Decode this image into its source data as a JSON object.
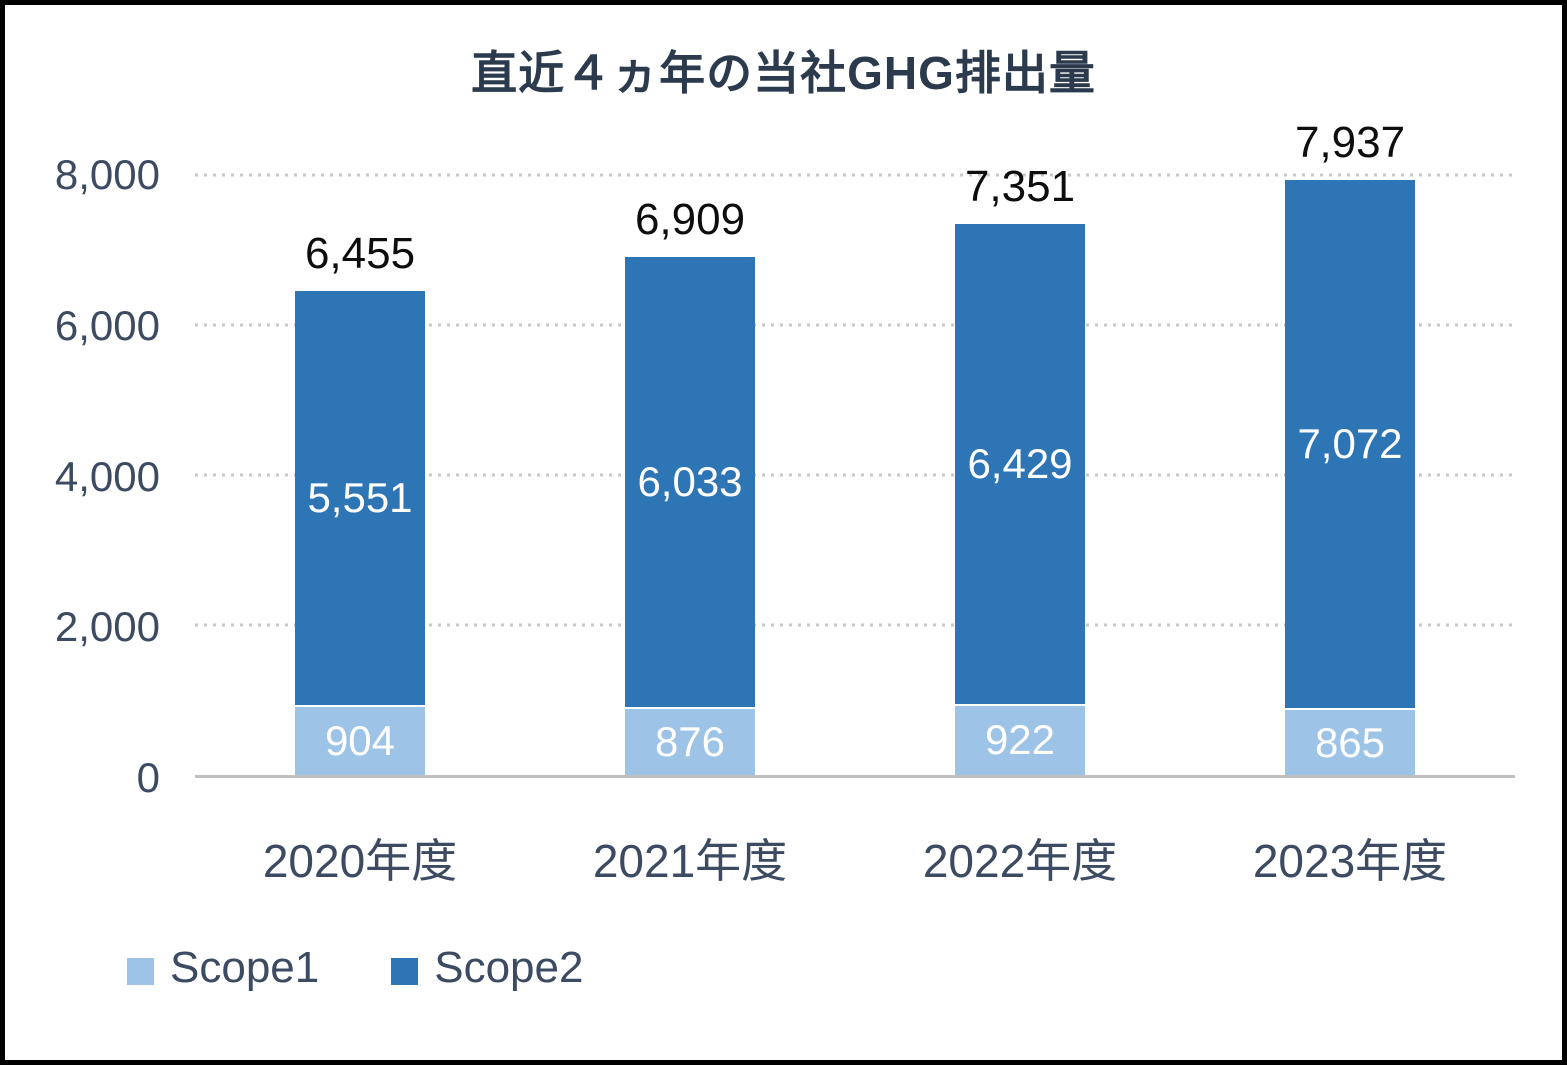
{
  "title": "直近４ヵ年の当社GHG排出量",
  "colors": {
    "scope1": "#9DC3E6",
    "scope2": "#2E75B6",
    "title_text": "#2B3A4D",
    "axis_text": "#3C4B61",
    "total_label_text": "#0D0D0D",
    "segment_label_text": "#FFFFFF",
    "gridline": "#C9C9C9",
    "baseline": "#BFBFBF",
    "frame_border": "#000000",
    "background": "#FFFFFF"
  },
  "chart_data": {
    "type": "bar",
    "stacked": true,
    "title": "直近４ヵ年の当社GHG排出量",
    "categories": [
      "2020年度",
      "2021年度",
      "2022年度",
      "2023年度"
    ],
    "series": [
      {
        "name": "Scope1",
        "color": "#9DC3E6",
        "values": [
          904,
          876,
          922,
          865
        ],
        "labels": [
          "904",
          "876",
          "922",
          "865"
        ]
      },
      {
        "name": "Scope2",
        "color": "#2E75B6",
        "values": [
          5551,
          6033,
          6429,
          7072
        ],
        "labels": [
          "5,551",
          "6,033",
          "6,429",
          "7,072"
        ]
      }
    ],
    "totals": [
      6455,
      6909,
      7351,
      7937
    ],
    "total_labels": [
      "6,455",
      "6,909",
      "7,351",
      "7,937"
    ],
    "xlabel": "",
    "ylabel": "",
    "y_axis": {
      "min": 0,
      "max": 8000,
      "ticks": [
        0,
        2000,
        4000,
        6000,
        8000
      ],
      "tick_labels": [
        "0",
        "2,000",
        "4,000",
        "6,000",
        "8,000"
      ]
    },
    "grid": "horizontal-dotted",
    "legend": {
      "position": "bottom-left",
      "entries": [
        "Scope1",
        "Scope2"
      ]
    }
  }
}
